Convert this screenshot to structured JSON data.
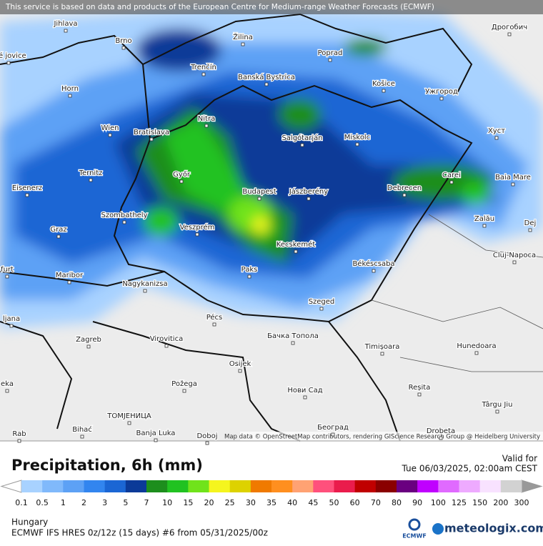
{
  "header": {
    "notice": "This service is based on data and products of the European Centre for Medium-range Weather Forecasts (ECMWF)"
  },
  "map": {
    "attribution": "Map data © OpenStreetMap contributors, rendering GIScience Research Group @ Heidelberg University",
    "cities": [
      "Jihlava",
      "Brno",
      "Žilina",
      "Poprad",
      "Дрогобич",
      "Trenčín",
      "Banská Bystrica",
      "Košice",
      "Ужгород",
      "Horn",
      "Wien",
      "Bratislava",
      "Nitra",
      "Salgótarján",
      "Miskolc",
      "Хуст",
      "Ternitz",
      "Győr",
      "Carei",
      "Baia Mare",
      "Eisenerz",
      "Budapest",
      "Jászberény",
      "Debrecen",
      "Szombathely",
      "Zalău",
      "Graz",
      "Veszprém",
      "Kecskemét",
      "Dej",
      "Cluj-Napoca",
      "Maribor",
      "Paks",
      "Békéscsaba",
      "Nagykanizsa",
      "Szeged",
      "Pécs",
      "Zagreb",
      "Virovitica",
      "Бачка Топола",
      "Timișoara",
      "Hunedoara",
      "Osijek",
      "Požega",
      "Нови Сад",
      "Reșita",
      "Târgu Jiu",
      "ТОМЈЕНИЦА",
      "Bihać",
      "Banja Luka",
      "Doboj",
      "Београд",
      "Drobeta",
      "ské jovice",
      "furt",
      "ljana",
      "eka",
      "Rab"
    ]
  },
  "legend": {
    "title": "Precipitation, 6h (mm)",
    "valid_label": "Valid for",
    "valid_time": "Tue 06/03/2025, 02:00am CEST",
    "labels": [
      "0.1",
      "0.5",
      "1",
      "2",
      "3",
      "5",
      "7",
      "10",
      "15",
      "20",
      "25",
      "30",
      "35",
      "40",
      "45",
      "50",
      "60",
      "70",
      "80",
      "90",
      "100",
      "125",
      "150",
      "200",
      "300"
    ],
    "colors": [
      "#a8d2ff",
      "#80b9fb",
      "#5da1f5",
      "#3285ef",
      "#1b66d4",
      "#0b3a98",
      "#1d8e1d",
      "#21c221",
      "#70e31b",
      "#f5f51e",
      "#ddd200",
      "#f07a00",
      "#ff8f1f",
      "#ffa273",
      "#ff507c",
      "#ea1c4c",
      "#c00000",
      "#8a0000",
      "#6a0080",
      "#c000ff",
      "#e06aff",
      "#eeaaff",
      "#f8e2ff",
      "#d2d2d2"
    ]
  },
  "footer": {
    "region": "Hungary",
    "model": "ECMWF IFS HRES 0z/12z (15 days) #6 from 05/31/2025/00z"
  },
  "logos": {
    "ecmwf": "ECMWF",
    "site": "meteologix.com"
  }
}
